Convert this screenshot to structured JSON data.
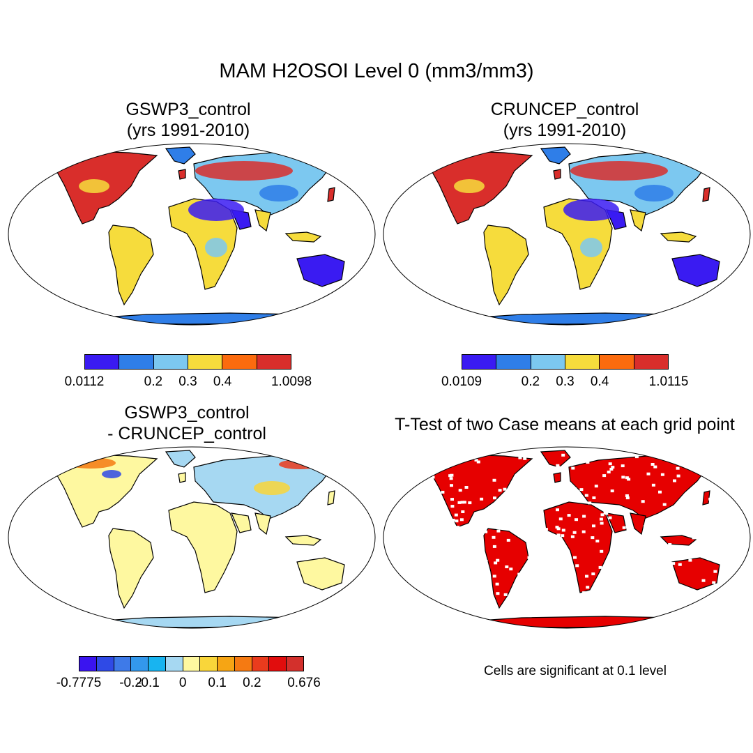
{
  "figure": {
    "title": "MAM H2OSOI Level 0 (mm3/mm3)"
  },
  "panels": [
    {
      "id": "gswp3",
      "title": "GSWP3_control\n(yrs 1991-2010)",
      "map_theme": "absolute",
      "colorbar": {
        "colors": [
          "#3a1bf2",
          "#2f7ee8",
          "#7cc8f0",
          "#f6dc3c",
          "#fb6b0e",
          "#d92e2b"
        ],
        "labels": [
          "0.0112",
          "0.2",
          "0.3",
          "0.4",
          "1.0098"
        ]
      }
    },
    {
      "id": "cruncep",
      "title": "CRUNCEP_control\n(yrs 1991-2010)",
      "map_theme": "absolute",
      "colorbar": {
        "colors": [
          "#3a1bf2",
          "#2f7ee8",
          "#7cc8f0",
          "#f6dc3c",
          "#fb6b0e",
          "#d92e2b"
        ],
        "labels": [
          "0.0109",
          "0.2",
          "0.3",
          "0.4",
          "1.0115"
        ]
      }
    },
    {
      "id": "difference",
      "title": "GSWP3_control\n- CRUNCEP_control",
      "map_theme": "difference",
      "colorbar": {
        "colors": [
          "#3a14f0",
          "#2f4ae6",
          "#3e7ae8",
          "#3398ec",
          "#18b4f0",
          "#a6d8f2",
          "#fef8a0",
          "#f9d63a",
          "#f6a514",
          "#f57a12",
          "#ea3b1d",
          "#e10d0d",
          "#d3302c"
        ],
        "labels": [
          "-0.7775",
          "-0.2",
          "-0.1",
          "0",
          "0.1",
          "0.2",
          "0.676"
        ]
      }
    },
    {
      "id": "ttest",
      "title": "T-Test of two Case means at each grid point",
      "map_theme": "significance",
      "note": "Cells are significant at 0.1 level"
    }
  ]
}
